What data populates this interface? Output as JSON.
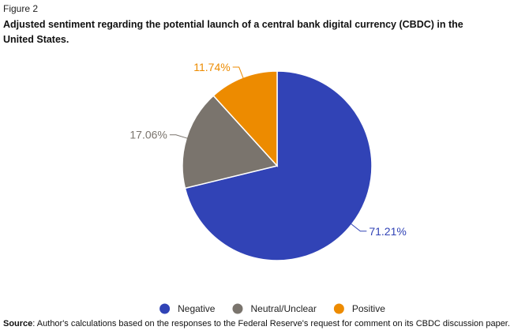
{
  "figure_label": "Figure 2",
  "source": {
    "label": "Source",
    "text": ": Author's calculations based on the responses to the Federal Reserve's request for comment on its CBDC discussion paper."
  },
  "chart_data": {
    "type": "pie",
    "title": "Adjusted sentiment regarding the potential launch of a central bank digital currency (CBDC) in the United States.",
    "slices": [
      {
        "label": "Negative",
        "value": 71.21,
        "value_label": "71.21%",
        "color": "#3143b6"
      },
      {
        "label": "Neutral/Unclear",
        "value": 17.06,
        "value_label": "17.06%",
        "color": "#7a746d"
      },
      {
        "label": "Positive",
        "value": 11.74,
        "value_label": "11.74%",
        "color": "#ed8b00"
      }
    ],
    "legend_position": "bottom"
  }
}
